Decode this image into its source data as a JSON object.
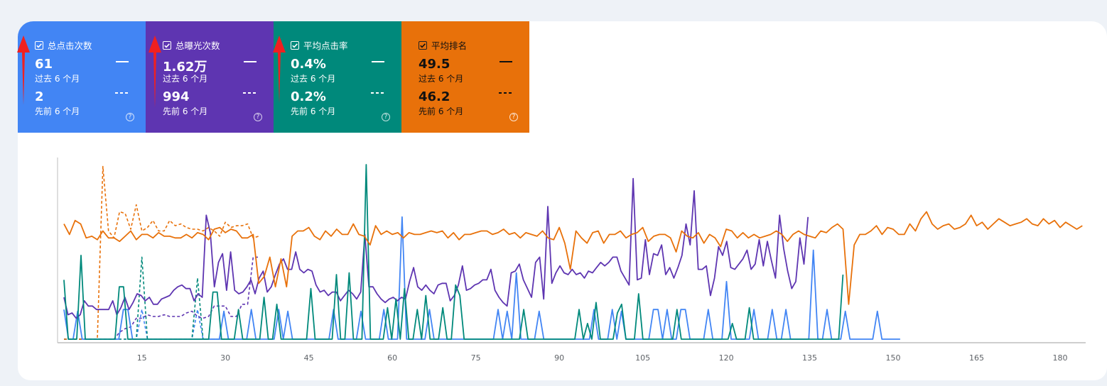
{
  "metrics": [
    {
      "label": "总点击次数",
      "current_value": "61",
      "current_period": "过去 6 个月",
      "previous_value": "2",
      "previous_period": "先前 6 个月",
      "color": "#4285f4",
      "text": "light"
    },
    {
      "label": "总曝光次数",
      "current_value": "1.62万",
      "current_period": "过去 6 个月",
      "previous_value": "994",
      "previous_period": "先前 6 个月",
      "color": "#5e35b1",
      "text": "light"
    },
    {
      "label": "平均点击率",
      "current_value": "0.4%",
      "current_period": "过去 6 个月",
      "previous_value": "0.2%",
      "previous_period": "先前 6 个月",
      "color": "#00897b",
      "text": "light"
    },
    {
      "label": "平均排名",
      "current_value": "49.5",
      "current_period": "过去 6 个月",
      "previous_value": "46.2",
      "previous_period": "先前 6 个月",
      "color": "#e8710a",
      "text": "dark"
    }
  ],
  "help_symbol": "?",
  "annotation": {
    "arrow_color": "#f02020"
  },
  "chart_data": {
    "type": "line",
    "xlabel": "",
    "ylabel": "",
    "x_ticks": [
      15,
      30,
      45,
      60,
      75,
      90,
      105,
      120,
      135,
      150,
      165,
      180
    ],
    "x_range": [
      0.5,
      184.5
    ],
    "y_range": [
      0,
      100
    ],
    "y_axis_labels_shown": false,
    "grid": false,
    "series": [
      {
        "metric": "总点击次数",
        "period": "current",
        "color": "#4285f4",
        "style": "solid",
        "start": 1,
        "values": [
          17,
          0,
          0,
          16,
          0,
          0,
          0,
          0,
          0,
          0,
          0,
          0,
          0,
          17,
          17,
          0,
          0,
          0,
          0,
          0,
          0,
          0,
          0,
          0,
          0,
          0,
          0,
          0,
          0,
          0,
          0,
          0,
          0,
          0,
          0,
          16,
          0,
          0,
          0,
          0,
          0,
          17,
          0,
          0,
          0,
          0,
          0,
          17,
          0,
          16,
          0,
          0,
          0,
          0,
          0,
          0,
          0,
          0,
          0,
          17,
          0,
          0,
          0,
          0,
          0,
          16,
          0,
          0,
          0,
          0,
          17,
          0,
          0,
          0,
          70,
          0,
          0,
          0,
          0,
          0,
          17,
          0,
          0,
          0,
          0,
          0,
          0,
          0,
          0,
          0,
          0,
          0,
          0,
          0,
          0,
          17,
          0,
          16,
          0,
          38,
          0,
          0,
          0,
          0,
          16,
          0,
          0,
          0,
          0,
          0,
          0,
          0,
          0,
          0,
          0,
          0,
          17,
          0,
          0,
          0,
          17,
          0,
          16,
          0,
          0,
          0,
          0,
          0,
          0,
          17,
          17,
          0,
          17,
          0,
          0,
          17,
          17,
          0,
          0,
          0,
          0,
          17,
          0,
          0,
          0,
          33,
          0,
          0,
          0,
          0,
          0,
          17,
          0,
          0,
          0,
          17,
          0,
          0,
          17,
          0,
          0,
          0,
          0,
          0,
          51,
          0,
          0,
          17,
          0,
          0,
          0,
          16,
          0,
          0,
          0,
          0,
          0,
          0,
          16,
          0,
          0,
          0,
          0,
          0,
          0,
          0,
          0,
          0,
          0,
          0,
          33,
          17,
          17,
          33,
          0,
          0,
          0,
          0,
          0,
          0,
          0,
          0,
          0,
          0,
          0,
          0,
          0,
          33,
          0,
          0,
          0,
          0,
          0,
          0,
          0,
          33,
          17,
          33,
          0
        ]
      },
      {
        "metric": "总点击次数",
        "period": "previous",
        "color": "#4285f4",
        "style": "dashed",
        "start": 1,
        "values": [
          0,
          0,
          0,
          0,
          0,
          0,
          0,
          0,
          0,
          0,
          0,
          0,
          0,
          0,
          17,
          0,
          0,
          0,
          0,
          0,
          0,
          0,
          0,
          0,
          17,
          0,
          0,
          0,
          0,
          0,
          0,
          0,
          0,
          0,
          0,
          0
        ]
      },
      {
        "metric": "总曝光次数",
        "period": "current",
        "color": "#5e35b1",
        "style": "solid",
        "start": 1,
        "values": [
          24,
          14,
          15,
          12,
          14,
          22,
          19,
          19,
          17,
          17,
          17,
          17,
          22,
          14,
          18,
          24,
          17,
          21,
          26,
          25,
          22,
          24,
          20,
          20,
          23,
          24,
          25,
          28,
          30,
          31,
          29,
          29,
          22,
          26,
          24,
          71,
          61,
          30,
          44,
          49,
          28,
          50,
          28,
          26,
          27,
          30,
          34,
          26,
          35,
          39,
          27,
          30,
          37,
          43,
          46,
          40,
          40,
          50,
          40,
          38,
          40,
          39,
          31,
          27,
          28,
          25,
          27,
          27,
          22,
          25,
          28,
          26,
          23,
          27,
          60,
          30,
          30,
          26,
          23,
          21,
          23,
          24,
          22,
          24,
          23,
          33,
          41,
          30,
          28,
          31,
          28,
          26,
          31,
          32,
          32,
          22,
          25,
          31,
          42,
          28,
          29,
          31,
          32,
          34,
          34,
          40,
          28,
          24,
          21,
          19,
          38,
          39,
          43,
          34,
          29,
          24,
          44,
          47,
          23,
          76,
          32,
          38,
          42,
          38,
          37,
          40,
          37,
          38,
          35,
          39,
          38,
          41,
          44,
          42,
          44,
          47,
          47,
          39,
          35,
          31,
          92,
          34,
          35,
          57,
          37,
          49,
          48,
          54,
          37,
          41,
          35,
          41,
          48,
          66,
          54,
          85,
          40,
          40,
          42,
          25,
          35,
          53,
          48,
          56,
          41,
          40,
          43,
          46,
          51,
          40,
          43,
          57,
          42,
          56,
          45,
          35,
          71,
          52,
          39,
          29,
          33,
          58,
          43,
          70,
          80,
          70,
          64,
          49,
          47,
          48,
          46,
          55,
          66,
          56,
          43,
          49,
          40,
          44,
          53,
          36,
          51,
          64,
          69,
          33,
          51,
          40,
          44,
          42,
          37,
          40,
          41,
          34,
          27,
          30,
          38,
          32,
          28,
          34,
          30,
          25,
          43,
          48,
          59,
          65,
          42,
          56,
          59,
          46,
          42,
          34,
          37,
          25,
          42,
          37,
          25,
          31,
          30,
          50,
          44,
          48,
          44,
          46,
          49,
          48,
          45,
          49
        ]
      },
      {
        "metric": "总曝光次数",
        "period": "previous",
        "color": "#5e35b1",
        "style": "dashed",
        "start": 1,
        "values": [
          0,
          0,
          0,
          0,
          0,
          0,
          0,
          0,
          0,
          0,
          4,
          6,
          7,
          12,
          12,
          14,
          13,
          13,
          14,
          13,
          13,
          13,
          15,
          16,
          13,
          12,
          13,
          19,
          19,
          19,
          13,
          13,
          20,
          20,
          47,
          47
        ]
      },
      {
        "metric": "平均点击率",
        "period": "current",
        "color": "#00897b",
        "style": "solid",
        "start": 1,
        "values": [
          34,
          0,
          0,
          0,
          48,
          0,
          0,
          0,
          0,
          0,
          0,
          0,
          0,
          30,
          30,
          0,
          0,
          0,
          0,
          0,
          0,
          0,
          0,
          0,
          0,
          0,
          0,
          0,
          0,
          0,
          0,
          0,
          0,
          0,
          0,
          27,
          27,
          0,
          0,
          0,
          0,
          17,
          0,
          0,
          0,
          0,
          0,
          24,
          0,
          0,
          20,
          0,
          0,
          0,
          0,
          0,
          0,
          0,
          29,
          0,
          0,
          0,
          0,
          0,
          37,
          0,
          0,
          38,
          0,
          0,
          0,
          100,
          0,
          0,
          0,
          0,
          18,
          0,
          23,
          0,
          29,
          0,
          0,
          17,
          0,
          25,
          0,
          0,
          0,
          18,
          0,
          0,
          31,
          25,
          0,
          0,
          0,
          0,
          0,
          0,
          0,
          0,
          0,
          0,
          0,
          0,
          0,
          0,
          17,
          0,
          0,
          0,
          0,
          0,
          0,
          0,
          0,
          0,
          0,
          0,
          0,
          17,
          0,
          9,
          0,
          21,
          0,
          0,
          0,
          0,
          15,
          20,
          0,
          0,
          0,
          26,
          0,
          0,
          0,
          0,
          0,
          0,
          0,
          0,
          17,
          0,
          0,
          0,
          0,
          0,
          0,
          0,
          0,
          0,
          0,
          0,
          0,
          9,
          0,
          0,
          0,
          18,
          0,
          0,
          0,
          0,
          0,
          0,
          0,
          0,
          0,
          0,
          0,
          0,
          0,
          0,
          0,
          0,
          0,
          0,
          0,
          0,
          0,
          37,
          0,
          0,
          0,
          0,
          0,
          15,
          0,
          0,
          0,
          9,
          0,
          0,
          0,
          0,
          0,
          0,
          0,
          0,
          0,
          0,
          0,
          0,
          0,
          0,
          0,
          0,
          0,
          0,
          0,
          0,
          0,
          0,
          21,
          33,
          17,
          0,
          0,
          0,
          0,
          0,
          0,
          0,
          0,
          0,
          0,
          0,
          20,
          15,
          13,
          20,
          28
        ]
      },
      {
        "metric": "平均点击率",
        "period": "previous",
        "color": "#00897b",
        "style": "dashed",
        "start": 1,
        "values": [
          0,
          0,
          0,
          0,
          0,
          0,
          0,
          0,
          0,
          0,
          0,
          0,
          0,
          0,
          47,
          0,
          0,
          0,
          0,
          0,
          0,
          0,
          0,
          0,
          35,
          0,
          0,
          0,
          0,
          0,
          0,
          0,
          0,
          0,
          0,
          0
        ]
      },
      {
        "metric": "平均排名",
        "period": "current",
        "color": "#e8710a",
        "style": "solid",
        "start": 1,
        "values": [
          66,
          60,
          68,
          66,
          58,
          59,
          57,
          62,
          58,
          58,
          56,
          59,
          62,
          57,
          60,
          60,
          58,
          61,
          59,
          59,
          58,
          58,
          60,
          58,
          61,
          60,
          57,
          63,
          64,
          61,
          63,
          62,
          58,
          58,
          60,
          32,
          36,
          47,
          30,
          46,
          30,
          59,
          62,
          62,
          64,
          59,
          57,
          62,
          59,
          63,
          60,
          60,
          66,
          60,
          59,
          54,
          65,
          60,
          62,
          60,
          61,
          58,
          61,
          60,
          60,
          61,
          62,
          61,
          62,
          58,
          61,
          57,
          60,
          60,
          61,
          62,
          62,
          60,
          61,
          63,
          60,
          61,
          58,
          61,
          60,
          59,
          62,
          58,
          57,
          64,
          55,
          40,
          62,
          58,
          55,
          61,
          62,
          55,
          60,
          60,
          62,
          58,
          60,
          61,
          64,
          56,
          59,
          60,
          60,
          58,
          50,
          62,
          59,
          58,
          61,
          55,
          60,
          58,
          53,
          63,
          62,
          58,
          61,
          58,
          60,
          58,
          59,
          60,
          62,
          60,
          56,
          60,
          62,
          60,
          59,
          58,
          62,
          61,
          64,
          66,
          63,
          20,
          54,
          60,
          60,
          62,
          65,
          60,
          64,
          63,
          60,
          60,
          66,
          62,
          69,
          73,
          66,
          63,
          65,
          66,
          63,
          64,
          66,
          71,
          65,
          67,
          63,
          66,
          69,
          67,
          65,
          66,
          67,
          69,
          66,
          65,
          69,
          66,
          68,
          64,
          67,
          65,
          63,
          65
        ]
      },
      {
        "metric": "平均排名",
        "period": "previous",
        "color": "#e8710a",
        "style": "dashed",
        "start": 1,
        "values": [
          0,
          0,
          0,
          0,
          0,
          0,
          0,
          99,
          62,
          58,
          73,
          72,
          63,
          77,
          62,
          64,
          68,
          62,
          62,
          68,
          65,
          66,
          64,
          63,
          63,
          62,
          64,
          62,
          59,
          67,
          64,
          65,
          65,
          66,
          58,
          59
        ]
      }
    ]
  }
}
